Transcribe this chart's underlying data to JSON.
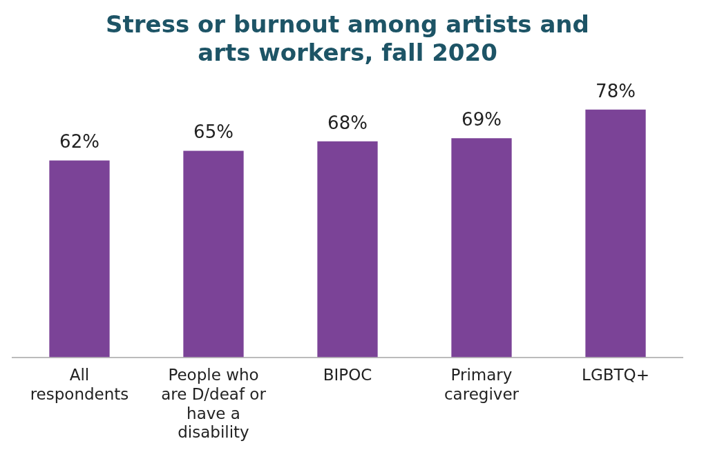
{
  "chart_data": {
    "type": "bar",
    "title": "Stress or burnout among artists and arts workers, fall 2020",
    "categories": [
      "All respondents",
      "People who are D/deaf or have a disability",
      "BIPOC",
      "Primary caregiver",
      "LGBTQ+"
    ],
    "values": [
      62,
      65,
      68,
      69,
      78
    ],
    "value_labels": [
      "62%",
      "65%",
      "68%",
      "69%",
      "78%"
    ],
    "color": "#7b4397",
    "grid": false,
    "legend": false
  }
}
